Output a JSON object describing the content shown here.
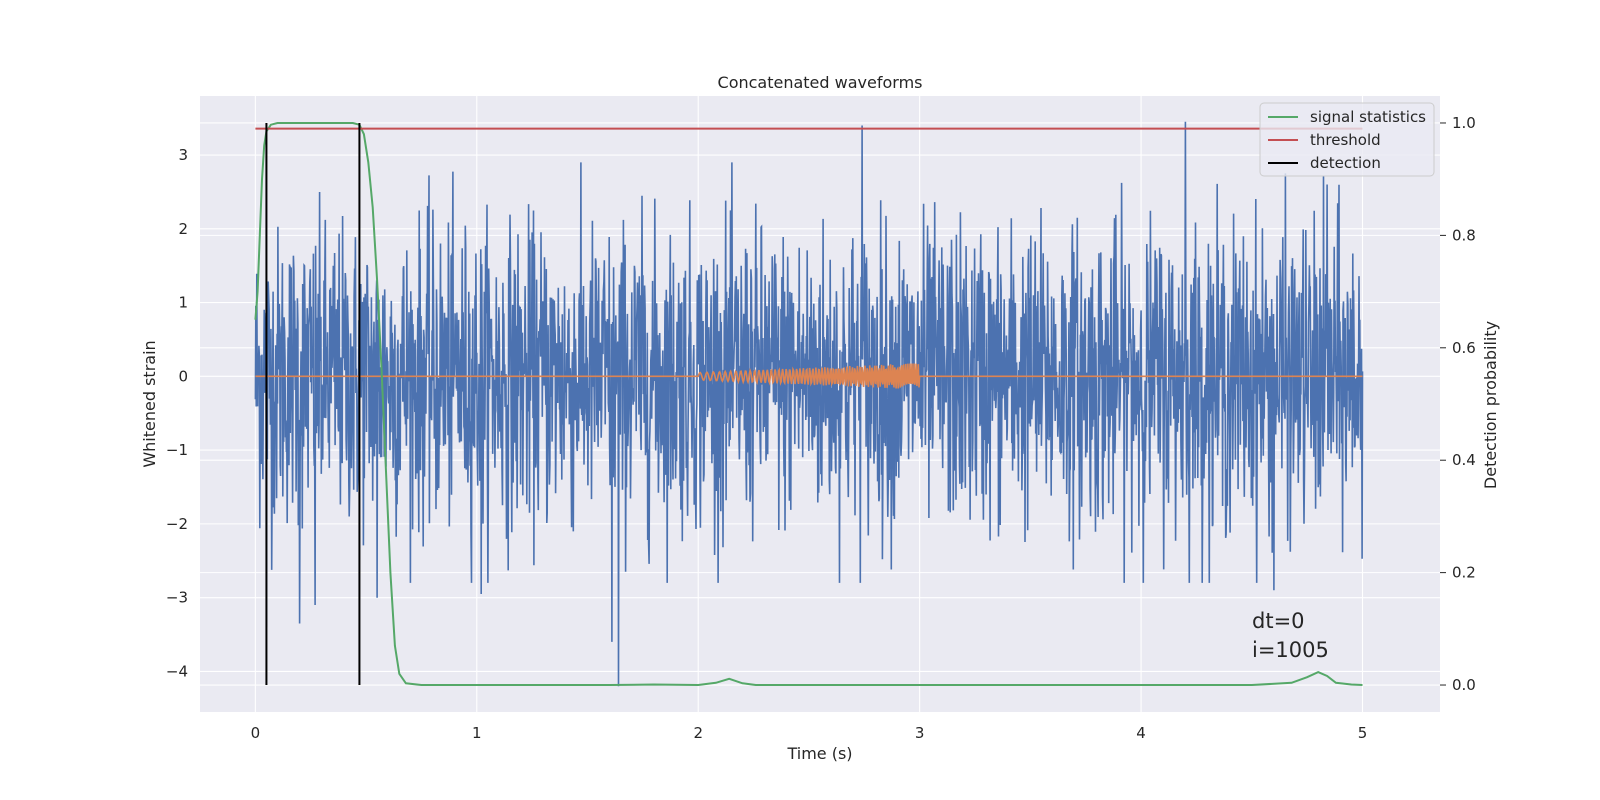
{
  "chart_data": {
    "type": "line",
    "title": "Concatenated waveforms",
    "xlabel": "Time (s)",
    "ylabel": "Whitened strain",
    "y2label": "Detection probability",
    "xlim": [
      -0.25,
      5.35
    ],
    "ylim": [
      -4.55,
      3.8
    ],
    "y2lim": [
      -0.048,
      1.048
    ],
    "xticks": [
      0,
      1,
      2,
      3,
      4,
      5
    ],
    "yticks": [
      -4,
      -3,
      -2,
      -1,
      0,
      1,
      2,
      3
    ],
    "y2ticks": [
      0.0,
      0.2,
      0.4,
      0.6,
      0.8,
      1.0
    ],
    "grid": true,
    "legend_position": "top-right",
    "annotations": [
      "dt=0",
      "i=1005"
    ],
    "series": [
      {
        "name": "",
        "color": "#4c72b0",
        "axis": "left",
        "kind": "noise",
        "x_range": [
          0,
          5
        ],
        "amplitude": 1.0,
        "notable_peaks": [
          {
            "x": 0.05,
            "y": -3.4
          },
          {
            "x": 0.27,
            "y": -3.1
          },
          {
            "x": 0.2,
            "y": -3.35
          },
          {
            "x": 0.55,
            "y": -3.0
          },
          {
            "x": 1.02,
            "y": -2.95
          },
          {
            "x": 1.61,
            "y": -3.6
          },
          {
            "x": 1.64,
            "y": -4.2
          },
          {
            "x": 2.74,
            "y": 3.4
          },
          {
            "x": 4.2,
            "y": 3.45
          },
          {
            "x": 4.6,
            "y": -2.9
          },
          {
            "x": 4.84,
            "y": 2.6
          }
        ]
      },
      {
        "name": "",
        "color": "#dd8452",
        "axis": "left",
        "kind": "chirp",
        "x_range": [
          0,
          5
        ],
        "chirp_range": [
          2.0,
          3.0
        ],
        "amplitude_start": 0.05,
        "amplitude_end": 0.18
      },
      {
        "name": "signal statistics",
        "color": "#55a868",
        "axis": "right",
        "points": [
          [
            0.0,
            0.65
          ],
          [
            0.01,
            0.7
          ],
          [
            0.02,
            0.8
          ],
          [
            0.03,
            0.9
          ],
          [
            0.04,
            0.96
          ],
          [
            0.05,
            0.985
          ],
          [
            0.07,
            0.997
          ],
          [
            0.1,
            1.0
          ],
          [
            0.44,
            1.0
          ],
          [
            0.47,
            0.997
          ],
          [
            0.49,
            0.98
          ],
          [
            0.51,
            0.93
          ],
          [
            0.53,
            0.85
          ],
          [
            0.55,
            0.72
          ],
          [
            0.57,
            0.56
          ],
          [
            0.59,
            0.38
          ],
          [
            0.61,
            0.2
          ],
          [
            0.63,
            0.07
          ],
          [
            0.65,
            0.02
          ],
          [
            0.68,
            0.003
          ],
          [
            0.75,
            0.0
          ],
          [
            1.6,
            0.0
          ],
          [
            1.8,
            0.001
          ],
          [
            2.0,
            0.0
          ],
          [
            2.08,
            0.004
          ],
          [
            2.14,
            0.011
          ],
          [
            2.2,
            0.003
          ],
          [
            2.26,
            0.0
          ],
          [
            4.5,
            0.0
          ],
          [
            4.68,
            0.004
          ],
          [
            4.75,
            0.014
          ],
          [
            4.8,
            0.023
          ],
          [
            4.84,
            0.016
          ],
          [
            4.88,
            0.004
          ],
          [
            4.95,
            0.001
          ],
          [
            5.0,
            0.0
          ]
        ]
      },
      {
        "name": "threshold",
        "color": "#c44e52",
        "axis": "right",
        "points": [
          [
            0.0,
            0.99
          ],
          [
            5.0,
            0.99
          ]
        ]
      },
      {
        "name": "detection",
        "color": "#000000",
        "axis": "right",
        "vlines": [
          0.05,
          0.47
        ],
        "y_range": [
          0.0,
          1.0
        ]
      }
    ]
  }
}
